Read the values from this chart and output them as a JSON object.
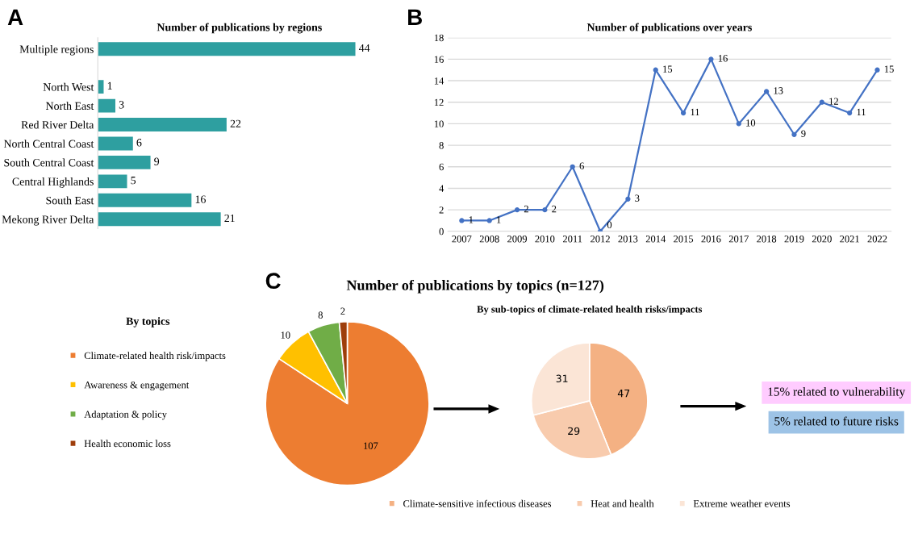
{
  "chart_data": [
    {
      "type": "bar",
      "orientation": "horizontal",
      "title": "Number of publications by regions",
      "annotations": [
        "A"
      ],
      "categories": [
        "Multiple regions",
        null,
        "North West",
        "North East",
        "Red River Delta",
        "North Central Coast",
        "South Central Coast",
        "Central Highlands",
        "South East",
        "Mekong River Delta"
      ],
      "series": [
        {
          "color": "#2e9fa0",
          "values": [
            44,
            null,
            1,
            3,
            22,
            6,
            9,
            5,
            16,
            21
          ]
        }
      ],
      "data_labels": true,
      "tick_labels": "y",
      "grid": false
    },
    {
      "type": "line",
      "title": "Number of publications over years",
      "annotations": [
        "B"
      ],
      "categories": [
        "2007",
        "2008",
        "2009",
        "2010",
        "2011",
        "2012",
        "2013",
        "2014",
        "2015",
        "2016",
        "2017",
        "2018",
        "2019",
        "2020",
        "2021",
        "2022"
      ],
      "series": [
        {
          "color": "#4472c4",
          "values": [
            1,
            1,
            2,
            2,
            6,
            0,
            3,
            15,
            11,
            16,
            10,
            13,
            9,
            12,
            11,
            15
          ]
        }
      ],
      "ylim": [
        0,
        18
      ],
      "yticks": [
        0,
        2,
        4,
        6,
        8,
        10,
        12,
        14,
        16,
        18
      ],
      "grid": "y",
      "marker": "circle",
      "line_style": "solid",
      "data_labels": true
    },
    {
      "type": "pie",
      "title": "Number of publications by topics (n=127)",
      "annotations": [
        "C"
      ],
      "legend_title": "By topics",
      "legend": "left",
      "data_labels": true,
      "categories": [
        "Climate-related health risk/impacts",
        "Awareness & engagement",
        "Adaptation & policy",
        "Health economic loss"
      ],
      "values": [
        107,
        10,
        8,
        2
      ],
      "colors": [
        "#ed7d31",
        "#ffc000",
        "#70ad47",
        "#9e3e0b"
      ]
    },
    {
      "type": "pie",
      "title": "By sub-topics of climate-related health risks/impacts",
      "annotations": [
        "15% related to vulnerability",
        "5% related to future risks"
      ],
      "legend": "bottom",
      "data_labels": true,
      "categories": [
        "Climate-sensitive infectious diseases",
        "Heat and health",
        "Extreme weather events"
      ],
      "values": [
        47,
        29,
        31
      ],
      "colors": [
        "#f4b183",
        "#f8cbad",
        "#fbe5d6"
      ]
    }
  ]
}
